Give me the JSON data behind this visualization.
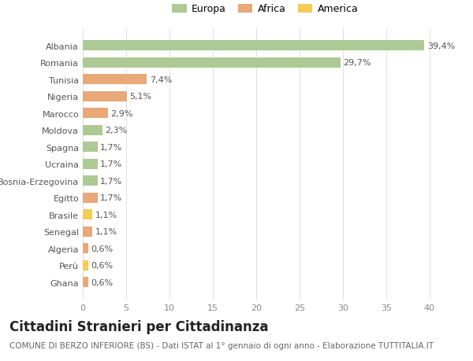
{
  "categories": [
    "Albania",
    "Romania",
    "Tunisia",
    "Nigeria",
    "Marocco",
    "Moldova",
    "Spagna",
    "Ucraina",
    "Bosnia-Erzegovina",
    "Egitto",
    "Brasile",
    "Senegal",
    "Algeria",
    "Perù",
    "Ghana"
  ],
  "values": [
    39.4,
    29.7,
    7.4,
    5.1,
    2.9,
    2.3,
    1.7,
    1.7,
    1.7,
    1.7,
    1.1,
    1.1,
    0.6,
    0.6,
    0.6
  ],
  "labels": [
    "39,4%",
    "29,7%",
    "7,4%",
    "5,1%",
    "2,9%",
    "2,3%",
    "1,7%",
    "1,7%",
    "1,7%",
    "1,7%",
    "1,1%",
    "1,1%",
    "0,6%",
    "0,6%",
    "0,6%"
  ],
  "colors": [
    "#adc994",
    "#adc994",
    "#e8a878",
    "#e8a878",
    "#e8a878",
    "#adc994",
    "#adc994",
    "#adc994",
    "#adc994",
    "#e8a878",
    "#f5cc55",
    "#e8a878",
    "#e8a878",
    "#f5cc55",
    "#e8a878"
  ],
  "legend": [
    {
      "label": "Europa",
      "color": "#adc994"
    },
    {
      "label": "Africa",
      "color": "#e8a878"
    },
    {
      "label": "America",
      "color": "#f5cc55"
    }
  ],
  "xlim": [
    0,
    42
  ],
  "xticks": [
    0,
    5,
    10,
    15,
    20,
    25,
    30,
    35,
    40
  ],
  "title": "Cittadini Stranieri per Cittadinanza",
  "subtitle": "COMUNE DI BERZO INFERIORE (BS) - Dati ISTAT al 1° gennaio di ogni anno - Elaborazione TUTTITALIA.IT",
  "background_color": "#ffffff",
  "bar_label_fontsize": 8,
  "title_fontsize": 12,
  "subtitle_fontsize": 7.5
}
